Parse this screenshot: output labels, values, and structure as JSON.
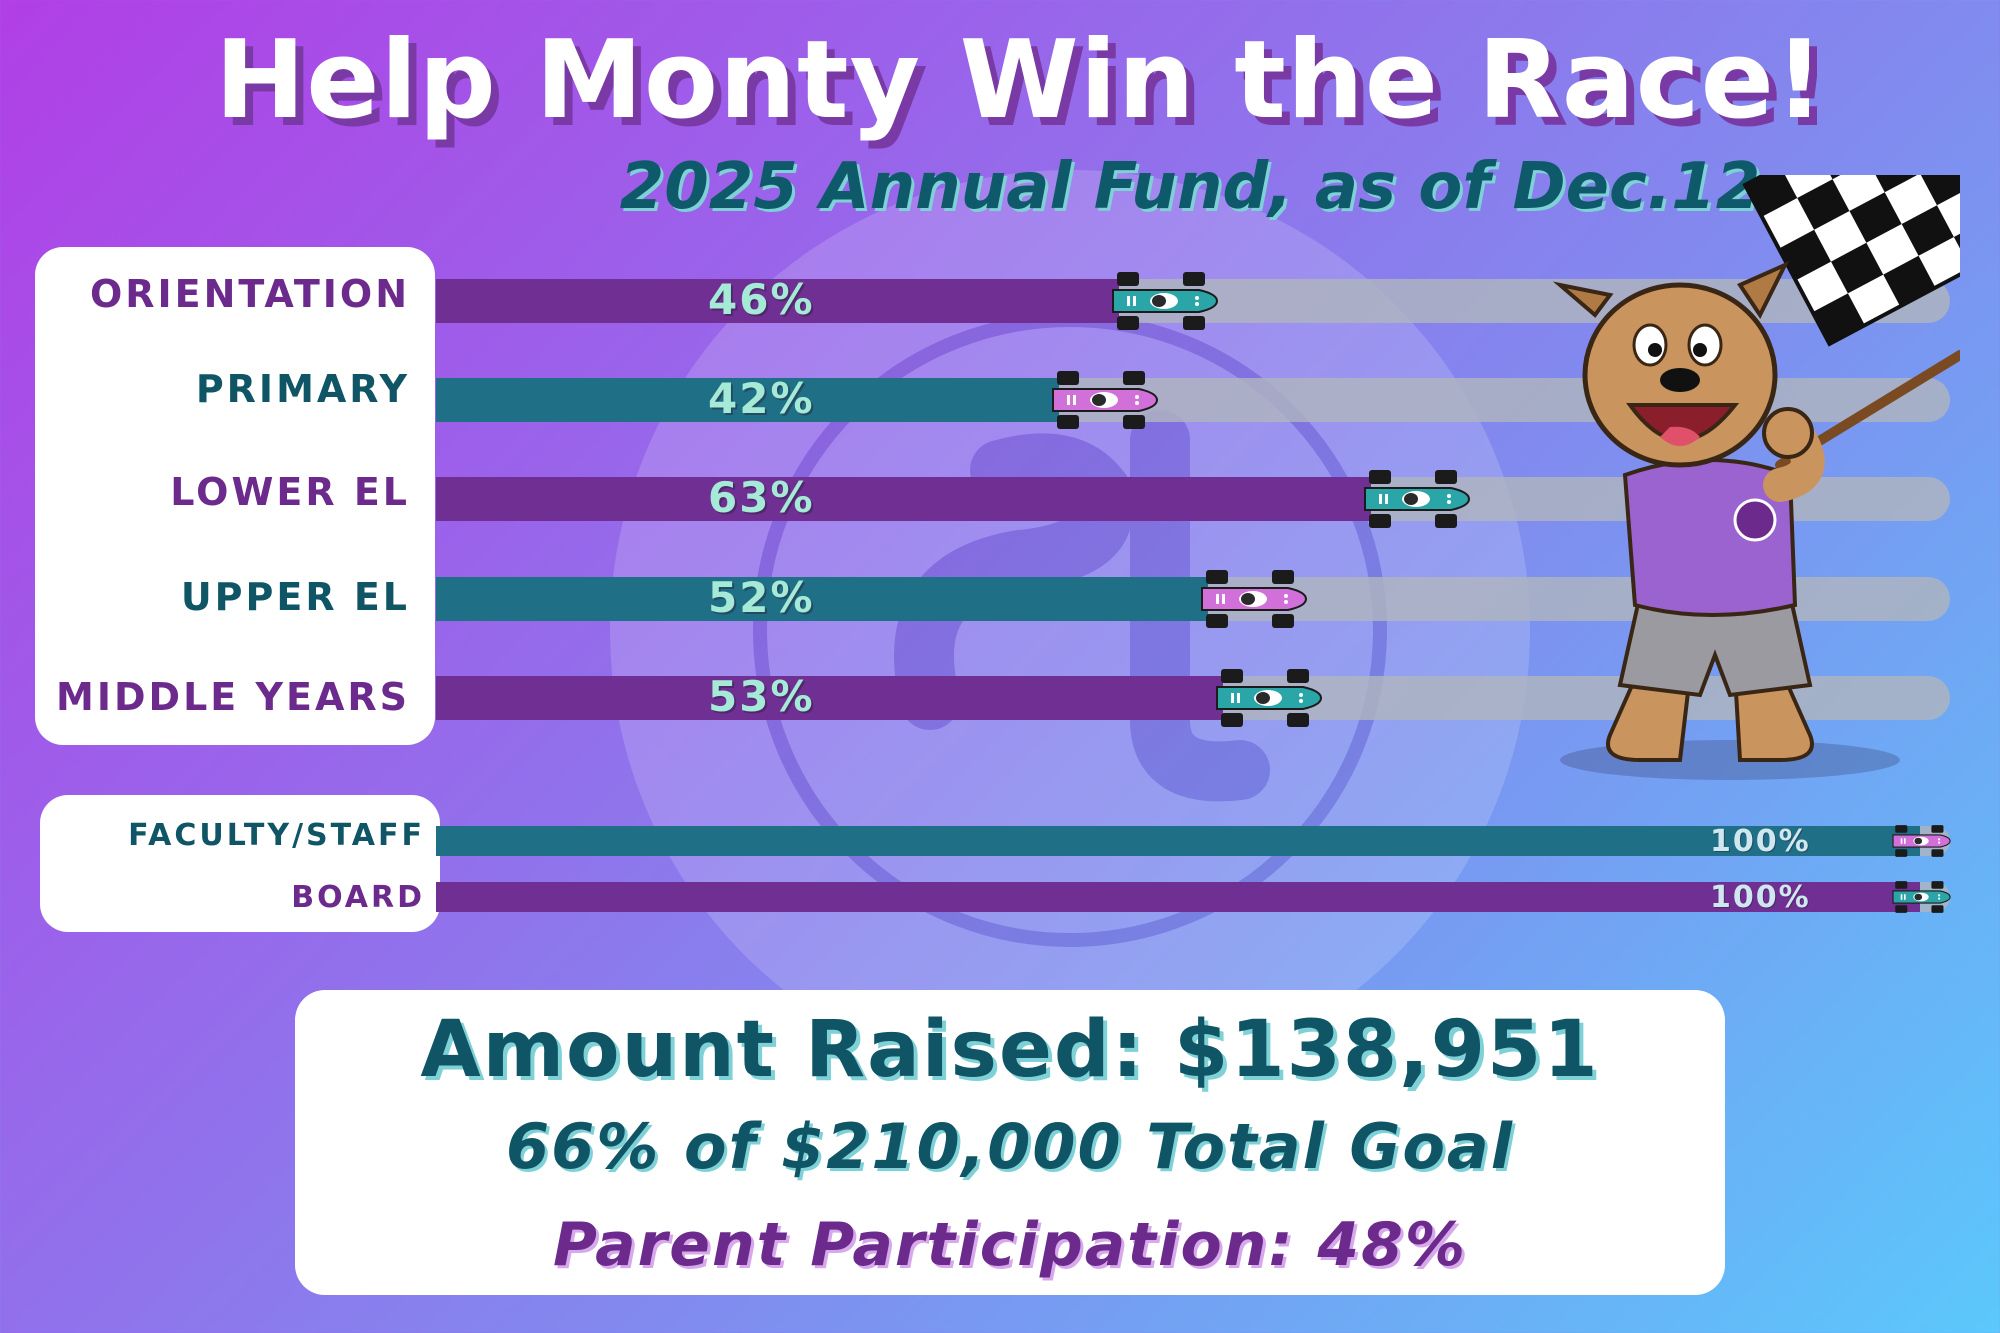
{
  "header": {
    "title": "Help Monty Win the Race!",
    "subtitle": "2025 Annual Fund, as of Dec.12"
  },
  "chart_data": {
    "type": "bar",
    "title": "Help Monty Win the Race!",
    "subtitle": "2025 Annual Fund, as of Dec.12",
    "xlim": [
      0,
      100
    ],
    "unit": "%",
    "categories": [
      "ORIENTATION",
      "PRIMARY",
      "LOWER EL",
      "UPPER EL",
      "MIDDLE YEARS",
      "FACULTY/STAFF",
      "BOARD"
    ],
    "values": [
      46,
      42,
      63,
      52,
      53,
      100,
      100
    ],
    "labels": [
      "46%",
      "42%",
      "63%",
      "52%",
      "53%",
      "100%",
      "100%"
    ]
  },
  "summary": {
    "amount": "Amount Raised: $138,951",
    "goal": "66% of $210,000 Total Goal",
    "participation": "Parent Participation:  48%"
  },
  "colors": {
    "purple_fill": "#702f93",
    "teal_fill": "#1f6f86",
    "track": "#afb4be",
    "label_purple": "#6b2a8c",
    "label_teal": "#0f5565"
  },
  "icons": [
    "race-car-icon",
    "checkered-flag-icon",
    "bulldog-mascot",
    "school-seal-watermark"
  ]
}
